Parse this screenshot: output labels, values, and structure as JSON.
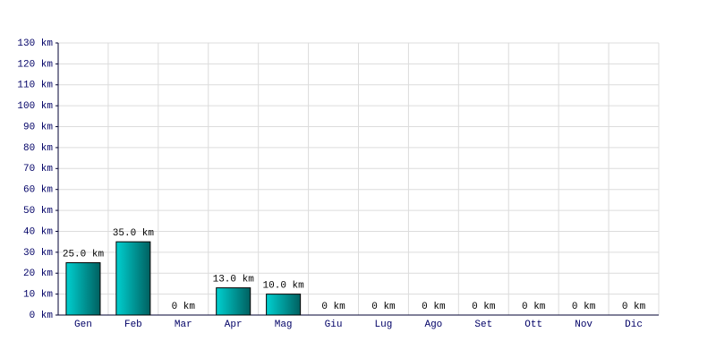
{
  "chart_data": {
    "type": "bar",
    "categories": [
      "Gen",
      "Feb",
      "Mar",
      "Apr",
      "Mag",
      "Giu",
      "Lug",
      "Ago",
      "Set",
      "Ott",
      "Nov",
      "Dic"
    ],
    "values": [
      25,
      35,
      0,
      13,
      10,
      0,
      0,
      0,
      0,
      0,
      0,
      0
    ],
    "value_labels": [
      "25.0 km",
      "35.0 km",
      "0 km",
      "13.0 km",
      "10.0 km",
      "0 km",
      "0 km",
      "0 km",
      "0 km",
      "0 km",
      "0 km",
      "0 km"
    ],
    "color": "#00d0d0",
    "ylim": [
      0,
      130
    ],
    "yticks": [
      {
        "value": 0,
        "label": "0 km"
      },
      {
        "value": 10,
        "label": "10 km"
      },
      {
        "value": 20,
        "label": "20 km"
      },
      {
        "value": 30,
        "label": "30 km"
      },
      {
        "value": 40,
        "label": "40 km"
      },
      {
        "value": 50,
        "label": "50 km"
      },
      {
        "value": 60,
        "label": "60 km"
      },
      {
        "value": 70,
        "label": "70 km"
      },
      {
        "value": 80,
        "label": "80 km"
      },
      {
        "value": 90,
        "label": "90 km"
      },
      {
        "value": 100,
        "label": "100 km"
      },
      {
        "value": 110,
        "label": "110 km"
      },
      {
        "value": 120,
        "label": "120 km"
      },
      {
        "value": 130,
        "label": "130 km"
      }
    ],
    "grid": true
  }
}
